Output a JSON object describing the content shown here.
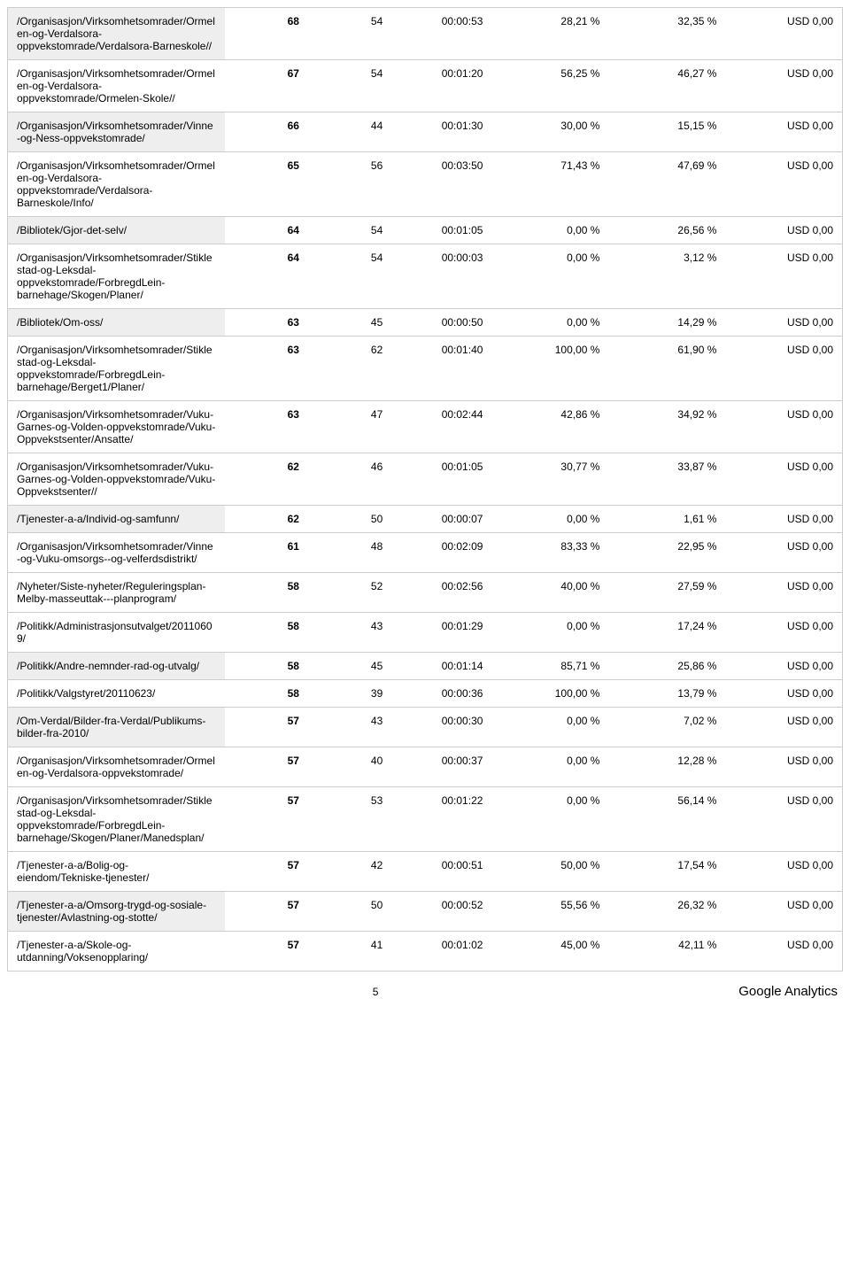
{
  "shaded_bg": "#eeeeee",
  "rows": [
    {
      "shaded": true,
      "cells": [
        "/Organisasjon/Virksomhetsomrader/Ormelen-og-Verdalsora-oppvekstomrade/Verdalsora-Barneskole//",
        "68",
        "54",
        "00:00:53",
        "28,21 %",
        "32,35 %",
        "USD 0,00"
      ]
    },
    {
      "shaded": false,
      "cells": [
        "/Organisasjon/Virksomhetsomrader/Ormelen-og-Verdalsora-oppvekstomrade/Ormelen-Skole//",
        "67",
        "54",
        "00:01:20",
        "56,25 %",
        "46,27 %",
        "USD 0,00"
      ]
    },
    {
      "shaded": true,
      "cells": [
        "/Organisasjon/Virksomhetsomrader/Vinne-og-Ness-oppvekstomrade/",
        "66",
        "44",
        "00:01:30",
        "30,00 %",
        "15,15 %",
        "USD 0,00"
      ]
    },
    {
      "shaded": false,
      "cells": [
        "/Organisasjon/Virksomhetsomrader/Ormelen-og-Verdalsora-oppvekstomrade/Verdalsora-Barneskole/Info/",
        "65",
        "56",
        "00:03:50",
        "71,43 %",
        "47,69 %",
        "USD 0,00"
      ]
    },
    {
      "shaded": true,
      "cells": [
        "/Bibliotek/Gjor-det-selv/",
        "64",
        "54",
        "00:01:05",
        "0,00 %",
        "26,56 %",
        "USD 0,00"
      ]
    },
    {
      "shaded": false,
      "cells": [
        "/Organisasjon/Virksomhetsomrader/Stiklestad-og-Leksdal-oppvekstomrade/ForbregdLein-barnehage/Skogen/Planer/",
        "64",
        "54",
        "00:00:03",
        "0,00 %",
        "3,12 %",
        "USD 0,00"
      ]
    },
    {
      "shaded": true,
      "cells": [
        "/Bibliotek/Om-oss/",
        "63",
        "45",
        "00:00:50",
        "0,00 %",
        "14,29 %",
        "USD 0,00"
      ]
    },
    {
      "shaded": false,
      "cells": [
        "/Organisasjon/Virksomhetsomrader/Stiklestad-og-Leksdal-oppvekstomrade/ForbregdLein-barnehage/Berget1/Planer/",
        "63",
        "62",
        "00:01:40",
        "100,00 %",
        "61,90 %",
        "USD 0,00"
      ]
    },
    {
      "shaded": false,
      "cells": [
        "/Organisasjon/Virksomhetsomrader/Vuku-Garnes-og-Volden-oppvekstomrade/Vuku-Oppvekstsenter/Ansatte/",
        "63",
        "47",
        "00:02:44",
        "42,86 %",
        "34,92 %",
        "USD 0,00"
      ]
    },
    {
      "shaded": false,
      "cells": [
        "/Organisasjon/Virksomhetsomrader/Vuku-Garnes-og-Volden-oppvekstomrade/Vuku-Oppvekstsenter//",
        "62",
        "46",
        "00:01:05",
        "30,77 %",
        "33,87 %",
        "USD 0,00"
      ]
    },
    {
      "shaded": true,
      "cells": [
        "/Tjenester-a-a/Individ-og-samfunn/",
        "62",
        "50",
        "00:00:07",
        "0,00 %",
        "1,61 %",
        "USD 0,00"
      ]
    },
    {
      "shaded": false,
      "cells": [
        "/Organisasjon/Virksomhetsomrader/Vinne-og-Vuku-omsorgs--og-velferdsdistrikt/",
        "61",
        "48",
        "00:02:09",
        "83,33 %",
        "22,95 %",
        "USD 0,00"
      ]
    },
    {
      "shaded": false,
      "cells": [
        "/Nyheter/Siste-nyheter/Reguleringsplan-Melby-masseuttak---planprogram/",
        "58",
        "52",
        "00:02:56",
        "40,00 %",
        "27,59 %",
        "USD 0,00"
      ]
    },
    {
      "shaded": false,
      "cells": [
        "/Politikk/Administrasjonsutvalget/20110609/",
        "58",
        "43",
        "00:01:29",
        "0,00 %",
        "17,24 %",
        "USD 0,00"
      ]
    },
    {
      "shaded": true,
      "cells": [
        "/Politikk/Andre-nemnder-rad-og-utvalg/",
        "58",
        "45",
        "00:01:14",
        "85,71 %",
        "25,86 %",
        "USD 0,00"
      ]
    },
    {
      "shaded": false,
      "cells": [
        "/Politikk/Valgstyret/20110623/",
        "58",
        "39",
        "00:00:36",
        "100,00 %",
        "13,79 %",
        "USD 0,00"
      ]
    },
    {
      "shaded": true,
      "cells": [
        "/Om-Verdal/Bilder-fra-Verdal/Publikums-bilder-fra-2010/",
        "57",
        "43",
        "00:00:30",
        "0,00 %",
        "7,02 %",
        "USD 0,00"
      ]
    },
    {
      "shaded": false,
      "cells": [
        "/Organisasjon/Virksomhetsomrader/Ormelen-og-Verdalsora-oppvekstomrade/",
        "57",
        "40",
        "00:00:37",
        "0,00 %",
        "12,28 %",
        "USD 0,00"
      ]
    },
    {
      "shaded": false,
      "cells": [
        "/Organisasjon/Virksomhetsomrader/Stiklestad-og-Leksdal-oppvekstomrade/ForbregdLein-barnehage/Skogen/Planer/Manedsplan/",
        "57",
        "53",
        "00:01:22",
        "0,00 %",
        "56,14 %",
        "USD 0,00"
      ]
    },
    {
      "shaded": false,
      "cells": [
        "/Tjenester-a-a/Bolig-og-eiendom/Tekniske-tjenester/",
        "57",
        "42",
        "00:00:51",
        "50,00 %",
        "17,54 %",
        "USD 0,00"
      ]
    },
    {
      "shaded": true,
      "cells": [
        "/Tjenester-a-a/Omsorg-trygd-og-sosiale-tjenester/Avlastning-og-stotte/",
        "57",
        "50",
        "00:00:52",
        "55,56 %",
        "26,32 %",
        "USD 0,00"
      ]
    },
    {
      "shaded": false,
      "cells": [
        "/Tjenester-a-a/Skole-og-utdanning/Voksenopplaring/",
        "57",
        "41",
        "00:01:02",
        "45,00 %",
        "42,11 %",
        "USD 0,00"
      ]
    }
  ],
  "footer": {
    "page": "5",
    "brand": "Google Analytics"
  }
}
